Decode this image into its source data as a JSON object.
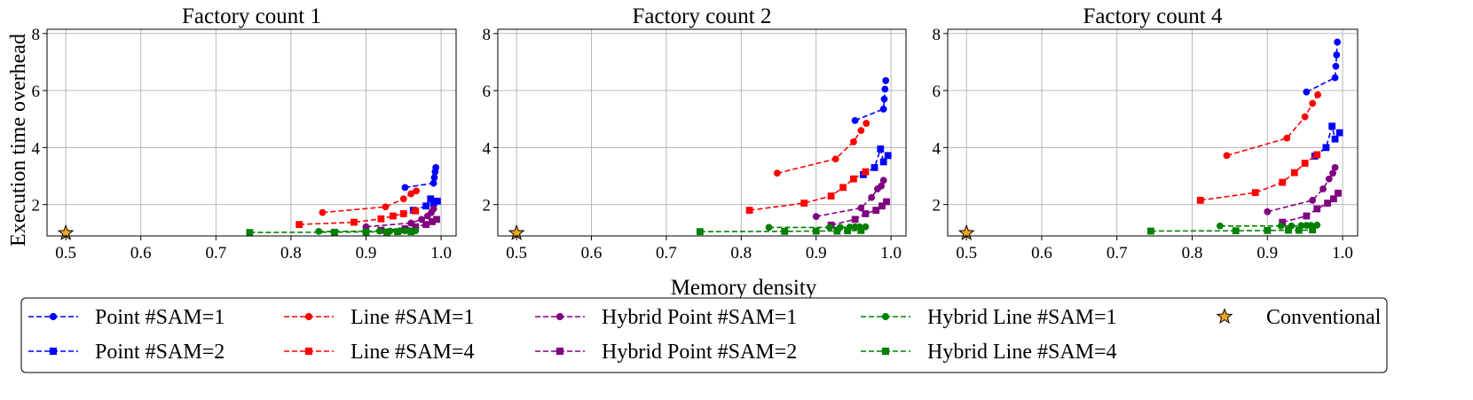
{
  "chart_data": {
    "type": "line",
    "xlabel": "Memory density",
    "ylabel": "Execution time overhead",
    "xlim": [
      0.475,
      1.02
    ],
    "ylim": [
      0.9,
      8.15
    ],
    "x_ticks": [
      0.5,
      0.6,
      0.7,
      0.8,
      0.9,
      1.0
    ],
    "x_tick_labels": [
      "0.5",
      "0.6",
      "0.7",
      "0.8",
      "0.9",
      "1.0"
    ],
    "y_ticks": [
      2,
      4,
      6,
      8
    ],
    "y_tick_labels": [
      "2",
      "4",
      "6",
      "8"
    ],
    "grid": true,
    "legend_position": "bottom",
    "legend": [
      {
        "name": "Point #SAM=1",
        "color": "#0000ff",
        "marker": "circle",
        "line": "dashed"
      },
      {
        "name": "Point #SAM=2",
        "color": "#0000ff",
        "marker": "square",
        "line": "dashed"
      },
      {
        "name": "Line #SAM=1",
        "color": "#ff0000",
        "marker": "circle",
        "line": "dashed"
      },
      {
        "name": "Line #SAM=4",
        "color": "#ff0000",
        "marker": "square",
        "line": "dashed"
      },
      {
        "name": "Hybrid Point #SAM=1",
        "color": "#800080",
        "marker": "circle",
        "line": "dashed"
      },
      {
        "name": "Hybrid Point #SAM=2",
        "color": "#800080",
        "marker": "square",
        "line": "dashed"
      },
      {
        "name": "Hybrid Line #SAM=1",
        "color": "#008000",
        "marker": "circle",
        "line": "dashed"
      },
      {
        "name": "Hybrid Line #SAM=4",
        "color": "#008000",
        "marker": "square",
        "line": "dashed"
      },
      {
        "name": "Conventional",
        "color": "#f5a623",
        "marker": "star",
        "line": "none"
      }
    ],
    "panels": [
      {
        "title": "Factory count 1",
        "series": [
          {
            "name": "Point #SAM=1",
            "x": [
              0.952,
              0.99,
              0.991,
              0.992,
              0.993
            ],
            "y": [
              2.6,
              2.75,
              2.95,
              3.15,
              3.3
            ]
          },
          {
            "name": "Point #SAM=2",
            "x": [
              0.963,
              0.98,
              0.986,
              0.99,
              0.995
            ],
            "y": [
              1.8,
              1.95,
              2.2,
              2.05,
              2.12
            ]
          },
          {
            "name": "Line #SAM=1",
            "x": [
              0.842,
              0.926,
              0.95,
              0.96,
              0.967
            ],
            "y": [
              1.72,
              1.92,
              2.2,
              2.38,
              2.48
            ]
          },
          {
            "name": "Line #SAM=4",
            "x": [
              0.811,
              0.884,
              0.92,
              0.936,
              0.95,
              0.966
            ],
            "y": [
              1.3,
              1.38,
              1.5,
              1.6,
              1.68,
              1.78
            ]
          },
          {
            "name": "Hybrid Point #SAM=1",
            "x": [
              0.9,
              0.96,
              0.974,
              0.982,
              0.987,
              0.99
            ],
            "y": [
              1.22,
              1.35,
              1.48,
              1.6,
              1.72,
              1.85
            ]
          },
          {
            "name": "Hybrid Point #SAM=2",
            "x": [
              0.92,
              0.952,
              0.966,
              0.98,
              0.988,
              0.994
            ],
            "y": [
              1.1,
              1.15,
              1.22,
              1.3,
              1.4,
              1.48
            ]
          },
          {
            "name": "Hybrid Line #SAM=1",
            "x": [
              0.837,
              0.918,
              0.932,
              0.945,
              0.952,
              0.958,
              0.966
            ],
            "y": [
              1.06,
              1.07,
              1.07,
              1.08,
              1.08,
              1.08,
              1.08
            ]
          },
          {
            "name": "Hybrid Line #SAM=4",
            "x": [
              0.745,
              0.858,
              0.9,
              0.928,
              0.942,
              0.96
            ],
            "y": [
              1.02,
              1.03,
              1.04,
              1.04,
              1.05,
              1.05
            ]
          },
          {
            "name": "Conventional",
            "x": [
              0.5
            ],
            "y": [
              1.0
            ]
          }
        ]
      },
      {
        "title": "Factory count 2",
        "series": [
          {
            "name": "Point #SAM=1",
            "x": [
              0.952,
              0.99,
              0.991,
              0.992,
              0.993
            ],
            "y": [
              4.95,
              5.35,
              5.7,
              6.05,
              6.35
            ]
          },
          {
            "name": "Point #SAM=2",
            "x": [
              0.963,
              0.978,
              0.986,
              0.99,
              0.996
            ],
            "y": [
              3.05,
              3.3,
              3.95,
              3.5,
              3.72
            ]
          },
          {
            "name": "Line #SAM=1",
            "x": [
              0.848,
              0.926,
              0.95,
              0.96,
              0.967
            ],
            "y": [
              3.1,
              3.6,
              4.2,
              4.6,
              4.85
            ]
          },
          {
            "name": "Line #SAM=4",
            "x": [
              0.811,
              0.884,
              0.92,
              0.936,
              0.95,
              0.966
            ],
            "y": [
              1.8,
              2.05,
              2.3,
              2.6,
              2.9,
              3.15
            ]
          },
          {
            "name": "Hybrid Point #SAM=1",
            "x": [
              0.9,
              0.96,
              0.974,
              0.982,
              0.987,
              0.99
            ],
            "y": [
              1.58,
              1.88,
              2.25,
              2.55,
              2.65,
              2.85
            ]
          },
          {
            "name": "Hybrid Point #SAM=2",
            "x": [
              0.92,
              0.952,
              0.966,
              0.98,
              0.988,
              0.994
            ],
            "y": [
              1.28,
              1.48,
              1.68,
              1.8,
              1.95,
              2.1
            ]
          },
          {
            "name": "Hybrid Line #SAM=1",
            "x": [
              0.837,
              0.918,
              0.932,
              0.945,
              0.952,
              0.958,
              0.966
            ],
            "y": [
              1.2,
              1.2,
              1.2,
              1.21,
              1.22,
              1.22,
              1.22
            ]
          },
          {
            "name": "Hybrid Line #SAM=4",
            "x": [
              0.745,
              0.858,
              0.9,
              0.928,
              0.942,
              0.96
            ],
            "y": [
              1.05,
              1.06,
              1.07,
              1.07,
              1.08,
              1.09
            ]
          },
          {
            "name": "Conventional",
            "x": [
              0.5
            ],
            "y": [
              1.0
            ]
          }
        ]
      },
      {
        "title": "Factory count 4",
        "series": [
          {
            "name": "Point #SAM=1",
            "x": [
              0.952,
              0.99,
              0.991,
              0.992,
              0.993
            ],
            "y": [
              5.95,
              6.45,
              6.85,
              7.25,
              7.7
            ]
          },
          {
            "name": "Point #SAM=2",
            "x": [
              0.963,
              0.978,
              0.986,
              0.99,
              0.996
            ],
            "y": [
              3.7,
              4.0,
              4.75,
              4.3,
              4.52
            ]
          },
          {
            "name": "Line #SAM=1",
            "x": [
              0.846,
              0.926,
              0.95,
              0.96,
              0.967
            ],
            "y": [
              3.72,
              4.33,
              5.08,
              5.55,
              5.85
            ]
          },
          {
            "name": "Line #SAM=4",
            "x": [
              0.811,
              0.884,
              0.92,
              0.936,
              0.95,
              0.966
            ],
            "y": [
              2.15,
              2.42,
              2.78,
              3.12,
              3.45,
              3.75
            ]
          },
          {
            "name": "Hybrid Point #SAM=1",
            "x": [
              0.9,
              0.96,
              0.974,
              0.982,
              0.987,
              0.99
            ],
            "y": [
              1.75,
              2.15,
              2.55,
              2.9,
              3.1,
              3.3
            ]
          },
          {
            "name": "Hybrid Point #SAM=2",
            "x": [
              0.92,
              0.952,
              0.966,
              0.98,
              0.988,
              0.994
            ],
            "y": [
              1.38,
              1.6,
              1.85,
              2.05,
              2.2,
              2.4
            ]
          },
          {
            "name": "Hybrid Line #SAM=1",
            "x": [
              0.837,
              0.918,
              0.932,
              0.945,
              0.952,
              0.958,
              0.966
            ],
            "y": [
              1.25,
              1.25,
              1.25,
              1.26,
              1.27,
              1.27,
              1.28
            ]
          },
          {
            "name": "Hybrid Line #SAM=4",
            "x": [
              0.745,
              0.858,
              0.9,
              0.928,
              0.942,
              0.96
            ],
            "y": [
              1.07,
              1.08,
              1.09,
              1.1,
              1.1,
              1.11
            ]
          },
          {
            "name": "Conventional",
            "x": [
              0.5
            ],
            "y": [
              1.0
            ]
          }
        ]
      }
    ]
  }
}
